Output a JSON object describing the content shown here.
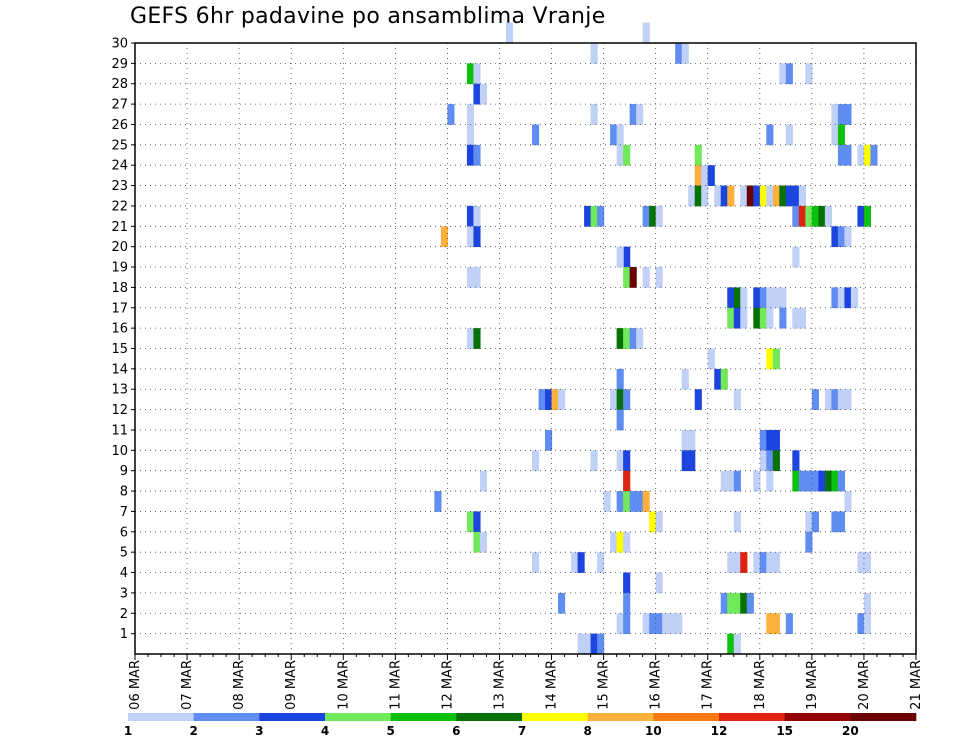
{
  "chart_data": {
    "type": "heatmap",
    "title": "GEFS 6hr padavine po ansamblima Vranje",
    "x_tick_labels": [
      "06 MAR",
      "07 MAR",
      "08 MAR",
      "09 MAR",
      "10 MAR",
      "11 MAR",
      "12 MAR",
      "13 MAR",
      "14 MAR",
      "15 MAR",
      "16 MAR",
      "17 MAR",
      "18 MAR",
      "19 MAR",
      "20 MAR",
      "21 MAR"
    ],
    "x_range": [
      "06 MAR 00h",
      "21 MAR 00h"
    ],
    "time_step_hours": 6,
    "y_tick_labels": [
      "1",
      "2",
      "3",
      "4",
      "5",
      "6",
      "7",
      "8",
      "9",
      "10",
      "11",
      "12",
      "13",
      "14",
      "15",
      "16",
      "17",
      "18",
      "19",
      "20",
      "21",
      "22",
      "23",
      "24",
      "25",
      "26",
      "27",
      "28",
      "29",
      "30"
    ],
    "y_range": [
      0,
      30
    ],
    "grid": "dotted",
    "colorbar": {
      "position": "bottom",
      "levels": [
        1,
        2,
        3,
        4,
        5,
        6,
        7,
        8,
        10,
        12,
        15,
        20
      ],
      "colors": [
        "#c0d0f7",
        "#5f8df2",
        "#1c45e0",
        "#72e95a",
        "#0cc20e",
        "#067106",
        "#ffff00",
        "#fbb13c",
        "#f57b11",
        "#e02211",
        "#950000",
        "#6a0000"
      ]
    },
    "cells": [
      [
        57,
        30,
        1
      ],
      [
        78,
        30,
        1
      ],
      [
        70,
        29,
        1
      ],
      [
        83,
        29,
        2
      ],
      [
        84,
        29,
        1
      ],
      [
        51,
        28,
        5
      ],
      [
        52,
        28,
        1
      ],
      [
        99,
        28,
        1
      ],
      [
        100,
        28,
        2
      ],
      [
        103,
        28,
        1
      ],
      [
        52,
        27,
        3
      ],
      [
        53,
        27,
        1
      ],
      [
        48,
        26,
        2
      ],
      [
        51,
        26,
        1
      ],
      [
        70,
        26,
        1
      ],
      [
        76,
        26,
        2
      ],
      [
        77,
        26,
        1
      ],
      [
        107,
        26,
        1
      ],
      [
        108,
        26,
        2
      ],
      [
        109,
        26,
        2
      ],
      [
        51,
        25,
        1
      ],
      [
        61,
        25,
        2
      ],
      [
        73,
        25,
        2
      ],
      [
        74,
        25,
        1
      ],
      [
        97,
        25,
        2
      ],
      [
        100,
        25,
        1
      ],
      [
        107,
        25,
        1
      ],
      [
        108,
        25,
        5
      ],
      [
        51,
        24,
        3
      ],
      [
        52,
        24,
        2
      ],
      [
        74,
        24,
        1
      ],
      [
        75,
        24,
        4
      ],
      [
        86,
        24,
        4
      ],
      [
        108,
        24,
        2
      ],
      [
        109,
        24,
        2
      ],
      [
        111,
        24,
        1
      ],
      [
        112,
        24,
        7
      ],
      [
        113,
        24,
        2
      ],
      [
        86,
        23,
        8
      ],
      [
        87,
        23,
        1
      ],
      [
        88,
        23,
        3
      ],
      [
        85,
        22,
        1
      ],
      [
        86,
        22,
        6
      ],
      [
        87,
        22,
        1
      ],
      [
        89,
        22,
        1
      ],
      [
        90,
        22,
        3
      ],
      [
        91,
        22,
        8
      ],
      [
        93,
        22,
        1
      ],
      [
        94,
        22,
        12
      ],
      [
        95,
        22,
        3
      ],
      [
        96,
        22,
        7
      ],
      [
        97,
        22,
        1
      ],
      [
        98,
        22,
        8
      ],
      [
        99,
        22,
        6
      ],
      [
        100,
        22,
        3
      ],
      [
        101,
        22,
        3
      ],
      [
        102,
        22,
        1
      ],
      [
        51,
        21,
        3
      ],
      [
        52,
        21,
        1
      ],
      [
        69,
        21,
        3
      ],
      [
        70,
        21,
        4
      ],
      [
        71,
        21,
        2
      ],
      [
        78,
        21,
        2
      ],
      [
        79,
        21,
        6
      ],
      [
        80,
        21,
        1
      ],
      [
        101,
        21,
        2
      ],
      [
        102,
        21,
        10
      ],
      [
        103,
        21,
        4
      ],
      [
        104,
        21,
        5
      ],
      [
        105,
        21,
        6
      ],
      [
        106,
        21,
        1
      ],
      [
        111,
        21,
        3
      ],
      [
        112,
        21,
        5
      ],
      [
        47,
        20,
        8
      ],
      [
        51,
        20,
        1
      ],
      [
        52,
        20,
        3
      ],
      [
        107,
        20,
        3
      ],
      [
        108,
        20,
        2
      ],
      [
        109,
        20,
        1
      ],
      [
        75,
        19,
        3
      ],
      [
        74,
        19,
        1
      ],
      [
        101,
        19,
        1
      ],
      [
        51,
        18,
        1
      ],
      [
        52,
        18,
        1
      ],
      [
        75,
        18,
        4
      ],
      [
        76,
        18,
        12
      ],
      [
        78,
        18,
        1
      ],
      [
        80,
        18,
        1
      ],
      [
        91,
        17,
        3
      ],
      [
        92,
        17,
        6
      ],
      [
        93,
        17,
        1
      ],
      [
        95,
        17,
        3
      ],
      [
        96,
        17,
        2
      ],
      [
        97,
        17,
        1
      ],
      [
        98,
        17,
        1
      ],
      [
        99,
        17,
        1
      ],
      [
        107,
        17,
        2
      ],
      [
        108,
        17,
        1
      ],
      [
        109,
        17,
        3
      ],
      [
        110,
        17,
        1
      ],
      [
        91,
        16,
        4
      ],
      [
        92,
        16,
        3
      ],
      [
        93,
        16,
        1
      ],
      [
        95,
        16,
        6
      ],
      [
        96,
        16,
        4
      ],
      [
        97,
        16,
        1
      ],
      [
        99,
        16,
        2
      ],
      [
        101,
        16,
        1
      ],
      [
        102,
        16,
        1
      ],
      [
        51,
        15,
        1
      ],
      [
        52,
        15,
        6
      ],
      [
        74,
        15,
        6
      ],
      [
        75,
        15,
        4
      ],
      [
        76,
        15,
        2
      ],
      [
        77,
        15,
        1
      ],
      [
        97,
        14,
        7
      ],
      [
        98,
        14,
        4
      ],
      [
        88,
        14,
        1
      ],
      [
        89,
        13,
        3
      ],
      [
        90,
        13,
        4
      ],
      [
        74,
        13,
        2
      ],
      [
        84,
        13,
        1
      ],
      [
        62,
        12,
        2
      ],
      [
        63,
        12,
        3
      ],
      [
        64,
        12,
        8
      ],
      [
        65,
        12,
        1
      ],
      [
        73,
        12,
        1
      ],
      [
        74,
        12,
        6
      ],
      [
        75,
        12,
        2
      ],
      [
        86,
        12,
        3
      ],
      [
        92,
        12,
        1
      ],
      [
        104,
        12,
        2
      ],
      [
        106,
        12,
        1
      ],
      [
        107,
        12,
        2
      ],
      [
        108,
        12,
        1
      ],
      [
        109,
        12,
        1
      ],
      [
        74,
        11,
        2
      ],
      [
        63,
        10,
        2
      ],
      [
        84,
        10,
        1
      ],
      [
        85,
        10,
        1
      ],
      [
        96,
        10,
        2
      ],
      [
        97,
        10,
        3
      ],
      [
        98,
        10,
        3
      ],
      [
        61,
        9,
        1
      ],
      [
        70,
        9,
        1
      ],
      [
        74,
        9,
        1
      ],
      [
        75,
        9,
        3
      ],
      [
        84,
        9,
        3
      ],
      [
        85,
        9,
        3
      ],
      [
        96,
        9,
        1
      ],
      [
        97,
        9,
        2
      ],
      [
        98,
        9,
        6
      ],
      [
        101,
        9,
        3
      ],
      [
        53,
        8,
        1
      ],
      [
        75,
        8,
        10
      ],
      [
        90,
        8,
        1
      ],
      [
        91,
        8,
        1
      ],
      [
        92,
        8,
        2
      ],
      [
        95,
        8,
        1
      ],
      [
        97,
        8,
        1
      ],
      [
        101,
        8,
        5
      ],
      [
        102,
        8,
        2
      ],
      [
        103,
        8,
        2
      ],
      [
        104,
        8,
        2
      ],
      [
        105,
        8,
        3
      ],
      [
        106,
        8,
        6
      ],
      [
        107,
        8,
        5
      ],
      [
        108,
        8,
        2
      ],
      [
        46,
        7,
        2
      ],
      [
        72,
        7,
        1
      ],
      [
        74,
        7,
        2
      ],
      [
        75,
        7,
        4
      ],
      [
        76,
        7,
        2
      ],
      [
        77,
        7,
        2
      ],
      [
        78,
        7,
        8
      ],
      [
        109,
        7,
        1
      ],
      [
        51,
        6,
        4
      ],
      [
        52,
        6,
        3
      ],
      [
        79,
        6,
        7
      ],
      [
        80,
        6,
        1
      ],
      [
        92,
        6,
        1
      ],
      [
        103,
        6,
        1
      ],
      [
        104,
        6,
        2
      ],
      [
        107,
        6,
        2
      ],
      [
        108,
        6,
        2
      ],
      [
        52,
        5,
        4
      ],
      [
        53,
        5,
        1
      ],
      [
        73,
        5,
        1
      ],
      [
        74,
        5,
        7
      ],
      [
        75,
        5,
        1
      ],
      [
        103,
        5,
        2
      ],
      [
        61,
        4,
        1
      ],
      [
        67,
        4,
        1
      ],
      [
        68,
        4,
        3
      ],
      [
        71,
        4,
        1
      ],
      [
        91,
        4,
        1
      ],
      [
        92,
        4,
        1
      ],
      [
        93,
        4,
        10
      ],
      [
        95,
        4,
        1
      ],
      [
        96,
        4,
        2
      ],
      [
        97,
        4,
        1
      ],
      [
        98,
        4,
        1
      ],
      [
        111,
        4,
        1
      ],
      [
        112,
        4,
        1
      ],
      [
        75,
        3,
        3
      ],
      [
        80,
        3,
        1
      ],
      [
        65,
        2,
        2
      ],
      [
        75,
        2,
        2
      ],
      [
        90,
        2,
        2
      ],
      [
        91,
        2,
        4
      ],
      [
        92,
        2,
        4
      ],
      [
        93,
        2,
        6
      ],
      [
        94,
        2,
        2
      ],
      [
        112,
        2,
        1
      ],
      [
        74,
        1,
        1
      ],
      [
        75,
        1,
        2
      ],
      [
        78,
        1,
        1
      ],
      [
        79,
        1,
        2
      ],
      [
        80,
        1,
        2
      ],
      [
        81,
        1,
        1
      ],
      [
        82,
        1,
        1
      ],
      [
        83,
        1,
        1
      ],
      [
        97,
        1,
        8
      ],
      [
        98,
        1,
        8
      ],
      [
        100,
        1,
        2
      ],
      [
        111,
        1,
        2
      ],
      [
        112,
        1,
        1
      ],
      [
        68,
        0,
        1
      ],
      [
        69,
        0,
        1
      ],
      [
        70,
        0,
        3
      ],
      [
        71,
        0,
        2
      ],
      [
        91,
        0,
        5
      ],
      [
        92,
        0,
        1
      ]
    ]
  }
}
